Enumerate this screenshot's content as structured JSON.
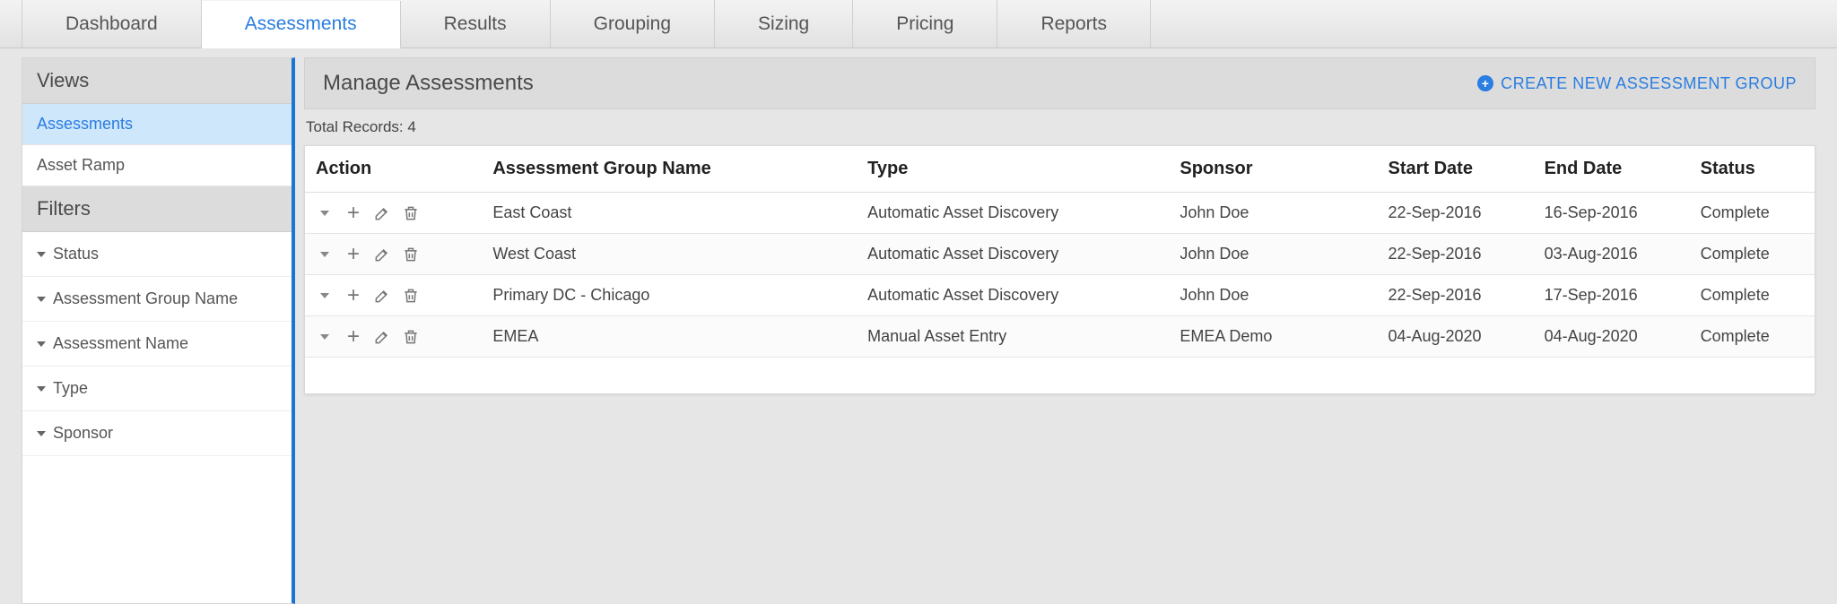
{
  "tabs": [
    {
      "label": "Dashboard",
      "active": false
    },
    {
      "label": "Assessments",
      "active": true
    },
    {
      "label": "Results",
      "active": false
    },
    {
      "label": "Grouping",
      "active": false
    },
    {
      "label": "Sizing",
      "active": false
    },
    {
      "label": "Pricing",
      "active": false
    },
    {
      "label": "Reports",
      "active": false
    }
  ],
  "sidebar": {
    "views_header": "Views",
    "views": [
      {
        "label": "Assessments",
        "selected": true
      },
      {
        "label": "Asset Ramp",
        "selected": false
      }
    ],
    "filters_header": "Filters",
    "filters": [
      {
        "label": "Status"
      },
      {
        "label": "Assessment Group Name"
      },
      {
        "label": "Assessment Name"
      },
      {
        "label": "Type"
      },
      {
        "label": "Sponsor"
      }
    ]
  },
  "page": {
    "title": "Manage Assessments",
    "create_label": "CREATE NEW ASSESSMENT GROUP",
    "total_records_prefix": "Total Records: ",
    "total_records": "4"
  },
  "table": {
    "columns": {
      "action": "Action",
      "name": "Assessment Group Name",
      "type": "Type",
      "sponsor": "Sponsor",
      "start": "Start Date",
      "end": "End Date",
      "status": "Status"
    },
    "rows": [
      {
        "name": "East Coast",
        "type": "Automatic Asset Discovery",
        "sponsor": "John Doe",
        "start": "22-Sep-2016",
        "end": "16-Sep-2016",
        "status": "Complete"
      },
      {
        "name": "West Coast",
        "type": "Automatic Asset Discovery",
        "sponsor": "John Doe",
        "start": "22-Sep-2016",
        "end": "03-Aug-2016",
        "status": "Complete"
      },
      {
        "name": "Primary DC - Chicago",
        "type": "Automatic Asset Discovery",
        "sponsor": "John Doe",
        "start": "22-Sep-2016",
        "end": "17-Sep-2016",
        "status": "Complete"
      },
      {
        "name": "EMEA",
        "type": "Manual Asset Entry",
        "sponsor": "EMEA Demo",
        "start": "04-Aug-2020",
        "end": "04-Aug-2020",
        "status": "Complete"
      }
    ]
  },
  "colors": {
    "accent": "#2a7de1",
    "sidebar_border": "#1976d2",
    "selected_bg": "#cfe7fb"
  }
}
